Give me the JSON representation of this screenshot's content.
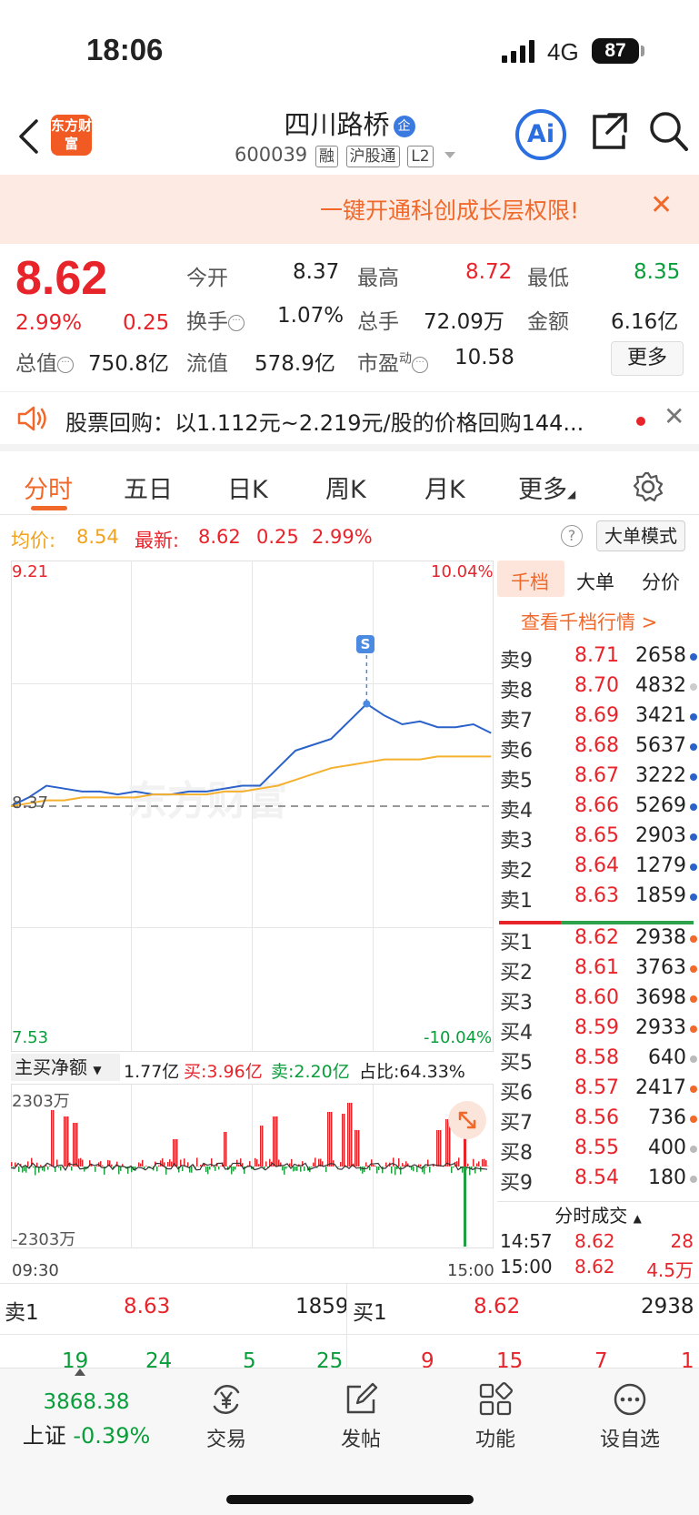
{
  "status_bar": {
    "time": "18:06",
    "network": "4G",
    "battery": "87"
  },
  "header": {
    "logo_text": "东方财富",
    "title": "四川路桥",
    "title_badge": "企",
    "code": "600039",
    "tags": [
      "融",
      "沪股通",
      "L2"
    ],
    "ai_label": "Ai"
  },
  "banner": {
    "text": "一键开通科创成长层权限!"
  },
  "quote": {
    "price": "8.62",
    "change_pct": "2.99%",
    "change": "0.25",
    "open_label": "今开",
    "open": "8.37",
    "high_label": "最高",
    "high": "8.72",
    "low_label": "最低",
    "low": "8.35",
    "turnover_label": "换手",
    "turnover": "1.07%",
    "volume_label": "总手",
    "volume": "72.09万",
    "amount_label": "金额",
    "amount": "6.16亿",
    "mktcap_label": "总值",
    "mktcap": "750.8亿",
    "float_label": "流值",
    "float": "578.9亿",
    "pe_label": "市盈",
    "pe_sup": "动",
    "pe": "10.58",
    "more_label": "更多"
  },
  "announcement": {
    "text": "股票回购：以1.112元~2.219元/股的价格回购144..."
  },
  "tabs": [
    "分时",
    "五日",
    "日K",
    "周K",
    "月K",
    "更多"
  ],
  "info_row": {
    "avg_label": "均价:",
    "avg": "8.54",
    "latest_label": "最新:",
    "latest": "8.62",
    "latest_change": "0.25",
    "latest_pct": "2.99%",
    "help": "?",
    "mode_label": "大单模式"
  },
  "chart": {
    "y_top": "9.21",
    "y_bottom": "7.53",
    "pct_top": "10.04%",
    "pct_bottom": "-10.04%",
    "prev_close": "8.37",
    "s_marker": "S",
    "watermark": "东方财富",
    "x_start": "09:30",
    "x_end": "15:00"
  },
  "chart_data": {
    "type": "line",
    "title": "",
    "ylim": [
      7.53,
      9.21
    ],
    "x_range": [
      "09:30",
      "15:00"
    ],
    "baseline": 8.37,
    "series": [
      {
        "name": "最新",
        "values": [
          8.37,
          8.4,
          8.44,
          8.43,
          8.42,
          8.42,
          8.41,
          8.42,
          8.41,
          8.41,
          8.42,
          8.42,
          8.43,
          8.44,
          8.44,
          8.5,
          8.56,
          8.58,
          8.6,
          8.66,
          8.72,
          8.68,
          8.65,
          8.66,
          8.64,
          8.64,
          8.65,
          8.62
        ]
      },
      {
        "name": "均价",
        "values": [
          8.37,
          8.38,
          8.39,
          8.39,
          8.4,
          8.4,
          8.4,
          8.4,
          8.41,
          8.41,
          8.41,
          8.41,
          8.42,
          8.42,
          8.43,
          8.44,
          8.46,
          8.48,
          8.5,
          8.51,
          8.52,
          8.53,
          8.53,
          8.53,
          8.54,
          8.54,
          8.54,
          8.54
        ]
      }
    ]
  },
  "flow": {
    "dropdown_label": "主买净额",
    "net": "1.77亿",
    "buy_label": "买:",
    "buy": "3.96亿",
    "sell_label": "卖:",
    "sell": "2.20亿",
    "ratio_label": "占比:",
    "ratio": "64.33%",
    "y_top": "2303万",
    "y_bottom": "-2303万"
  },
  "orderbook": {
    "tabs": [
      "千档",
      "大单",
      "分价"
    ],
    "link": "查看千档行情 >",
    "asks": [
      {
        "label": "卖9",
        "price": "8.71",
        "vol": "2658"
      },
      {
        "label": "卖8",
        "price": "8.70",
        "vol": "4832"
      },
      {
        "label": "卖7",
        "price": "8.69",
        "vol": "3421"
      },
      {
        "label": "卖6",
        "price": "8.68",
        "vol": "5637"
      },
      {
        "label": "卖5",
        "price": "8.67",
        "vol": "3222"
      },
      {
        "label": "卖4",
        "price": "8.66",
        "vol": "5269"
      },
      {
        "label": "卖3",
        "price": "8.65",
        "vol": "2903"
      },
      {
        "label": "卖2",
        "price": "8.64",
        "vol": "1279"
      },
      {
        "label": "卖1",
        "price": "8.63",
        "vol": "1859"
      }
    ],
    "bids": [
      {
        "label": "买1",
        "price": "8.62",
        "vol": "2938"
      },
      {
        "label": "买2",
        "price": "8.61",
        "vol": "3763"
      },
      {
        "label": "买3",
        "price": "8.60",
        "vol": "3698"
      },
      {
        "label": "买4",
        "price": "8.59",
        "vol": "2933"
      },
      {
        "label": "买5",
        "price": "8.58",
        "vol": "640"
      },
      {
        "label": "买6",
        "price": "8.57",
        "vol": "2417"
      },
      {
        "label": "买7",
        "price": "8.56",
        "vol": "736"
      },
      {
        "label": "买8",
        "price": "8.55",
        "vol": "400"
      },
      {
        "label": "买9",
        "price": "8.54",
        "vol": "180"
      }
    ],
    "trades_label": "分时成交",
    "trades": [
      {
        "time": "14:57",
        "price": "8.62",
        "vol": "28"
      },
      {
        "time": "15:00",
        "price": "8.62",
        "vol": "4.5万"
      }
    ]
  },
  "bottom_quote": {
    "ask_label": "卖1",
    "ask_price": "8.63",
    "ask_vol": "1859",
    "bid_label": "买1",
    "bid_price": "8.62",
    "bid_vol": "2938",
    "ask_queue": [
      "19",
      "24",
      "5",
      "25"
    ],
    "bid_queue": [
      "9",
      "15",
      "7",
      "1"
    ]
  },
  "nav": {
    "index_value": "3868.38",
    "index_label": "上证",
    "index_change": "-0.39%",
    "items": [
      "交易",
      "发帖",
      "功能",
      "设自选"
    ]
  },
  "colors": {
    "accent": "#f0692b",
    "up": "#e8242b",
    "down": "#0a9e3b",
    "price_line": "#2a62c9",
    "avg_line": "#f5b02e"
  }
}
